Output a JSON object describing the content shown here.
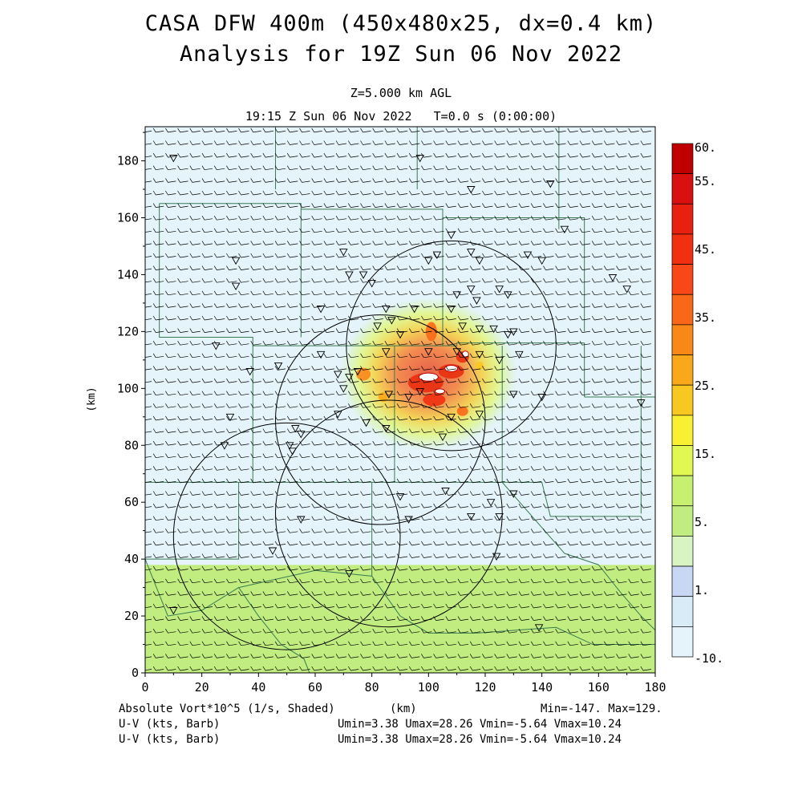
{
  "header": {
    "title_line1": "CASA DFW 400m (450x480x25, dx=0.4 km)",
    "title_line2": "Analysis for 19Z Sun 06 Nov 2022",
    "level": "Z=5.000 km AGL",
    "time": "19:15 Z Sun 06 Nov 2022   T=0.0 s (0:00:00)"
  },
  "footer": {
    "field1": "Absolute Vort*10^5 (1/s, Shaded)",
    "field2": "U-V (kts, Barb)",
    "field3": "U-V (kts, Barb)",
    "xunit": "(km)",
    "minmax": "Min=-147. Max=129.",
    "uv_stats1": "Umin=3.38 Umax=28.26 Vmin=-5.64 Vmax=10.24",
    "uv_stats2": "Umin=3.38 Umax=28.26 Vmin=-5.64 Vmax=10.24"
  },
  "chart_data": {
    "type": "heatmap",
    "title": "CASA DFW 400m (450x480x25, dx=0.4 km)",
    "xlabel": "",
    "ylabel": "(km)",
    "xlim": [
      0,
      180
    ],
    "ylim": [
      0,
      192
    ],
    "x_ticks": [
      "0",
      "20",
      "40",
      "60",
      "80",
      "100",
      "120",
      "140",
      "160",
      "180"
    ],
    "y_ticks": [
      "0",
      "20",
      "40",
      "60",
      "80",
      "100",
      "120",
      "140",
      "160",
      "180"
    ],
    "colorbar": {
      "tick_labels": [
        "60.",
        "55.",
        "45.",
        "35.",
        "25.",
        "15.",
        "5.",
        "1.",
        "-10."
      ],
      "colors": [
        "#c00000",
        "#d81010",
        "#e82010",
        "#f03010",
        "#f84818",
        "#f86818",
        "#f88818",
        "#f8a818",
        "#f8c820",
        "#f8f030",
        "#e0f850",
        "#c8f070",
        "#c0ec80",
        "#d8f4c0",
        "#c8d8f4",
        "#d8ecf8",
        "#e4f4fa"
      ]
    },
    "background_regions": [
      {
        "name": "vorticity ~5-10",
        "x": [
          0,
          180
        ],
        "y": [
          0,
          38
        ],
        "color": "#c0ec80"
      },
      {
        "name": "vorticity ~-10-0",
        "x": [
          0,
          180
        ],
        "y": [
          38,
          192
        ],
        "color": "#e4f4fa"
      }
    ],
    "convection_core": {
      "x": 100,
      "y": 105,
      "color_max": "#e83010"
    },
    "range_rings": [
      {
        "cx": 108,
        "cy": 115,
        "r": 37
      },
      {
        "cx": 83,
        "cy": 89,
        "r": 37
      },
      {
        "cx": 50,
        "cy": 48,
        "r": 40
      },
      {
        "cx": 86,
        "cy": 56,
        "r": 40
      }
    ],
    "wind_barbs": {
      "u_min": 3.38,
      "u_max": 28.26,
      "v_min": -5.64,
      "v_max": 10.24,
      "units": "kts"
    }
  }
}
